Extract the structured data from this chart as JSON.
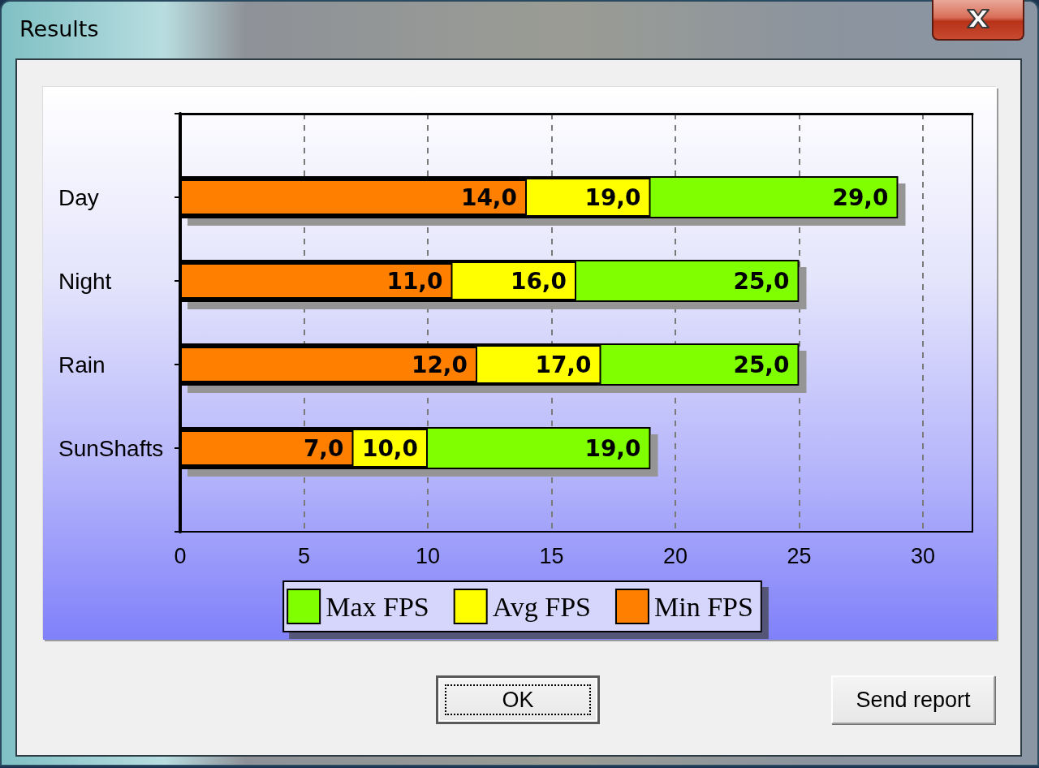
{
  "chart_data": {
    "type": "bar",
    "title": "Results",
    "orientation": "horizontal",
    "categories": [
      "Day",
      "Night",
      "Rain",
      "SunShafts"
    ],
    "series": [
      {
        "name": "Max FPS",
        "color": "#80ff00",
        "values": [
          29,
          25,
          25,
          19
        ],
        "value_labels": [
          "29,0",
          "25,0",
          "25,0",
          "19,0"
        ]
      },
      {
        "name": "Avg FPS",
        "color": "#ffff00",
        "values": [
          19,
          16,
          17,
          10
        ],
        "value_labels": [
          "19,0",
          "16,0",
          "17,0",
          "10,0"
        ]
      },
      {
        "name": "Min FPS",
        "color": "#ff8000",
        "values": [
          14,
          11,
          12,
          7
        ],
        "value_labels": [
          "14,0",
          "11,0",
          "12,0",
          "7,0"
        ]
      }
    ],
    "xlim": [
      0,
      32
    ],
    "xticks": [
      0,
      5,
      10,
      15,
      20,
      25,
      30
    ],
    "grid": "x",
    "legend": "bottom",
    "annotations": [
      "OK",
      "Send report"
    ]
  }
}
